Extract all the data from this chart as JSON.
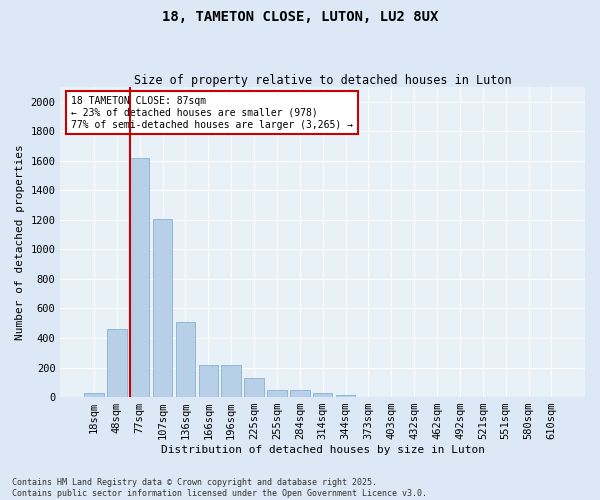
{
  "title": "18, TAMETON CLOSE, LUTON, LU2 8UX",
  "subtitle": "Size of property relative to detached houses in Luton",
  "xlabel": "Distribution of detached houses by size in Luton",
  "ylabel": "Number of detached properties",
  "categories": [
    "18sqm",
    "48sqm",
    "77sqm",
    "107sqm",
    "136sqm",
    "166sqm",
    "196sqm",
    "225sqm",
    "255sqm",
    "284sqm",
    "314sqm",
    "344sqm",
    "373sqm",
    "403sqm",
    "432sqm",
    "462sqm",
    "492sqm",
    "521sqm",
    "551sqm",
    "580sqm",
    "610sqm"
  ],
  "values": [
    30,
    460,
    1620,
    1205,
    510,
    215,
    215,
    130,
    45,
    45,
    25,
    12,
    0,
    0,
    0,
    0,
    0,
    0,
    0,
    0,
    0
  ],
  "bar_color": "#b8cfe8",
  "bar_edge_color": "#7aa8cc",
  "redline_index": 2,
  "annotation_title": "18 TAMETON CLOSE: 87sqm",
  "annotation_line1": "← 23% of detached houses are smaller (978)",
  "annotation_line2": "77% of semi-detached houses are larger (3,265) →",
  "annotation_box_color": "#cc0000",
  "ylim": [
    0,
    2100
  ],
  "yticks": [
    0,
    200,
    400,
    600,
    800,
    1000,
    1200,
    1400,
    1600,
    1800,
    2000
  ],
  "footnote1": "Contains HM Land Registry data © Crown copyright and database right 2025.",
  "footnote2": "Contains public sector information licensed under the Open Government Licence v3.0.",
  "bg_color": "#dce8f5",
  "plot_bg_color": "#e8f0f8",
  "title_fontsize": 10,
  "subtitle_fontsize": 8.5,
  "ylabel_fontsize": 8,
  "xlabel_fontsize": 8,
  "tick_fontsize": 7.5,
  "annotation_fontsize": 7,
  "footnote_fontsize": 6
}
